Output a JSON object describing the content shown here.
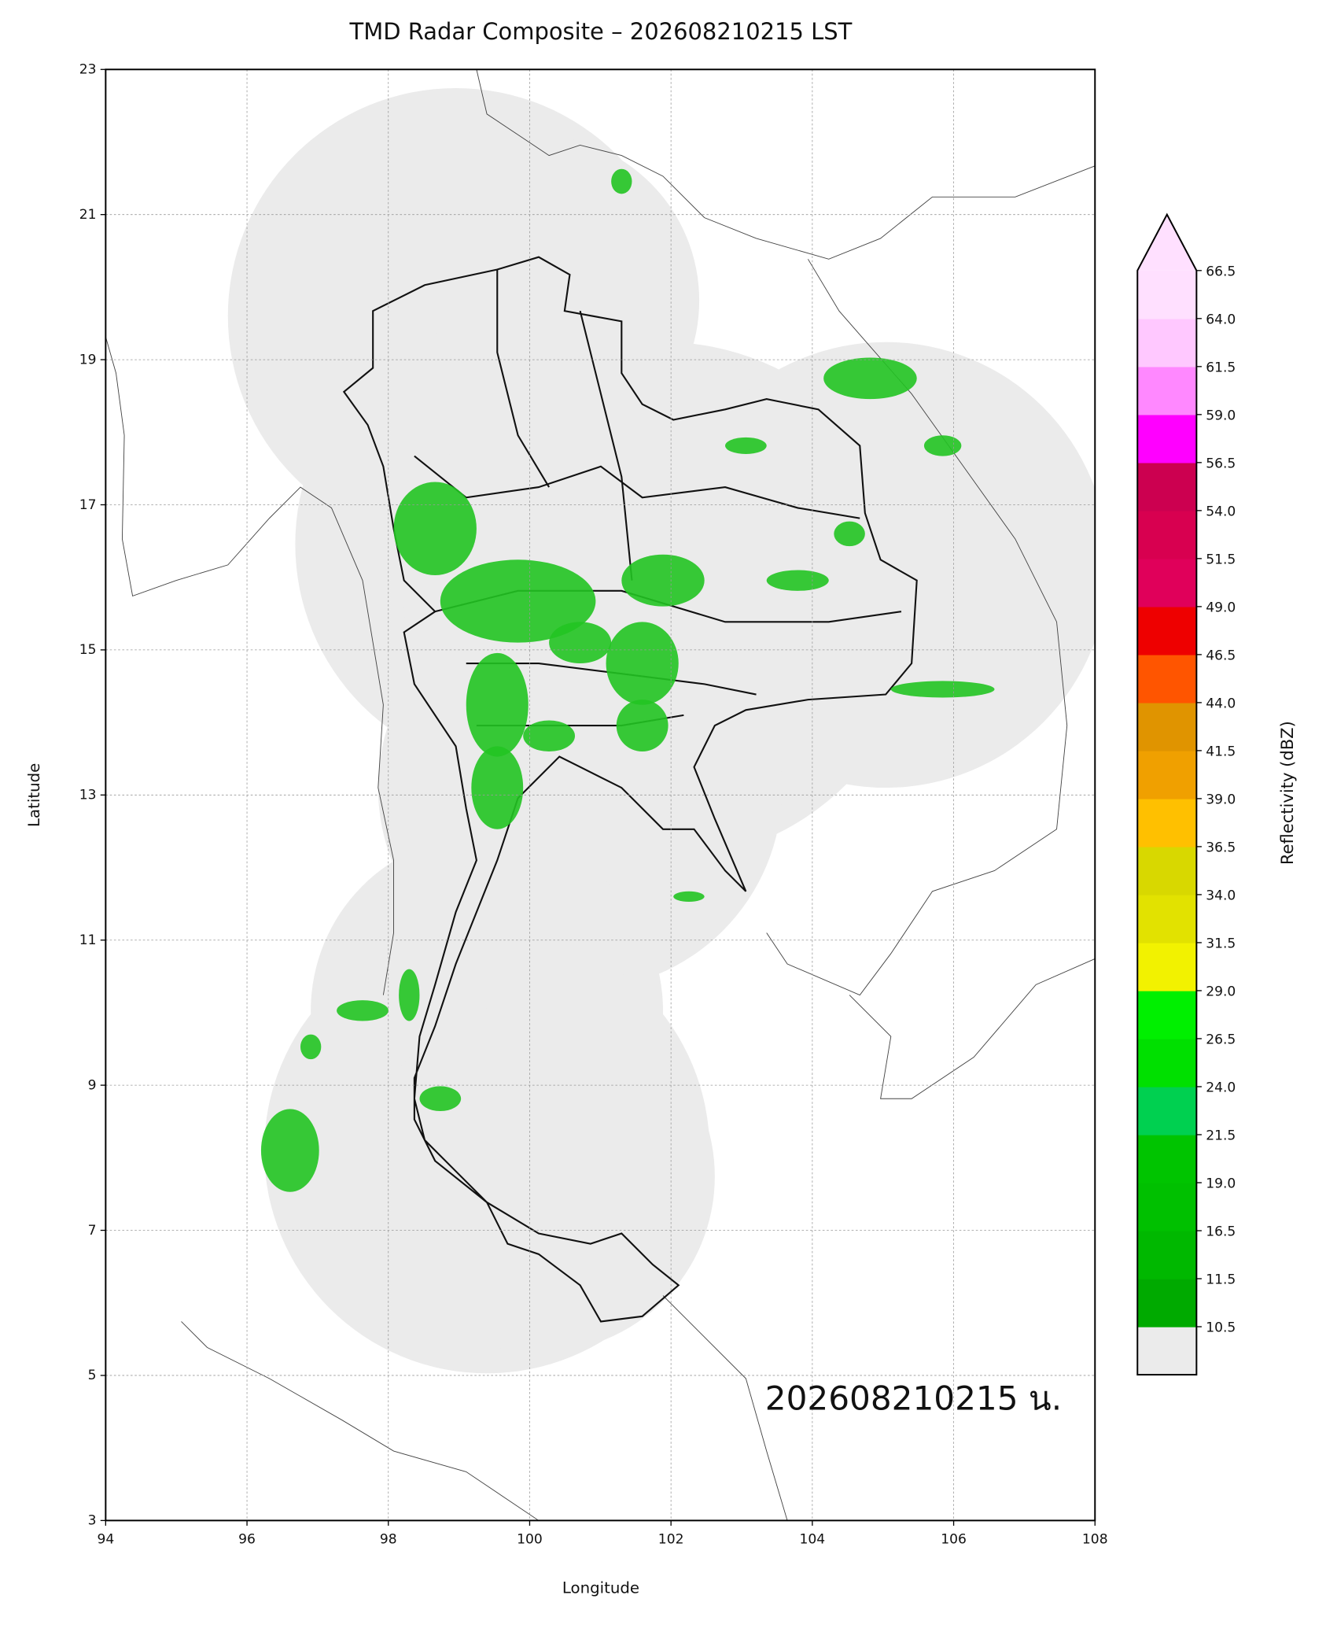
{
  "chart_data": {
    "type": "map",
    "title": "TMD Radar Composite – 202608210215 LST",
    "x_label": "Longitude",
    "y_label": "Latitude",
    "annotation": "202608210215 น.",
    "xlim": [
      94,
      108
    ],
    "xticks": [
      94,
      96,
      98,
      100,
      102,
      104,
      106,
      108
    ],
    "ylim": [
      3,
      23
    ],
    "yticks": [
      3,
      5,
      7,
      9,
      11,
      13,
      15,
      17,
      19,
      21,
      23
    ],
    "grid": true,
    "colorbar": {
      "label": "Reflectivity (dBZ)",
      "ticks": [
        10.5,
        11.5,
        16.5,
        {
          "value": 19,
          "label": "19.0"
        },
        21.5,
        {
          "value": 24,
          "label": "24.0"
        },
        26.5,
        {
          "value": 29,
          "label": "29.0"
        },
        31.5,
        {
          "value": 34,
          "label": "34.0"
        },
        36.5,
        {
          "value": 39,
          "label": "39.0"
        },
        41.5,
        {
          "value": 44,
          "label": "44.0"
        },
        46.5,
        {
          "value": 49,
          "label": "49.0"
        },
        51.5,
        {
          "value": 54,
          "label": "54.0"
        },
        56.5,
        {
          "value": 59,
          "label": "59.0"
        },
        61.5,
        {
          "value": 64,
          "label": "64.0"
        },
        66.5
      ],
      "colors": [
        "#00aa00",
        "#00b800",
        "#00c000",
        "#00c400",
        "#00d050",
        "#00e000",
        "#00f000",
        "#f2f200",
        "#e2e200",
        "#d8d800",
        "#ffc000",
        "#f0a000",
        "#e09400",
        "#ff5500",
        "#ee0000",
        "#e0005a",
        "#d80050",
        "#cc0050",
        "#ff00ff",
        "#ff88ff",
        "#ffc8ff",
        "#ffe0ff"
      ],
      "under_color": "#ebebeb",
      "over_color": "#ffe0ff"
    }
  }
}
